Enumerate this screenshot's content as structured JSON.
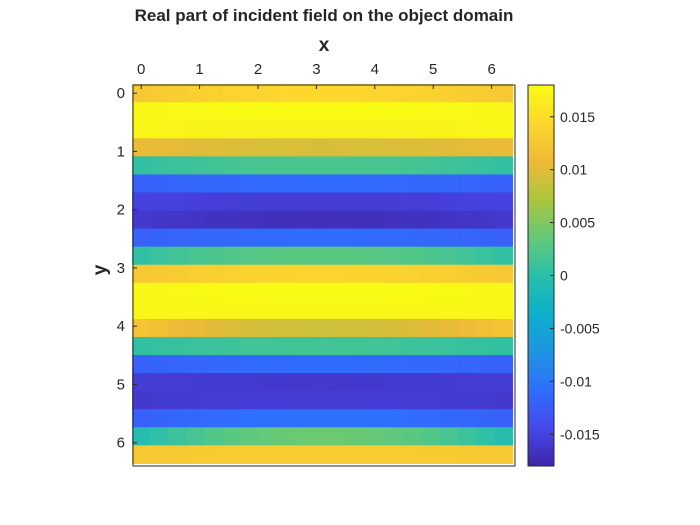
{
  "chart_data": {
    "type": "heatmap",
    "title": "Real part of incident field on the object domain",
    "xlabel": "x",
    "ylabel": "y",
    "x_axis_location": "top",
    "y_axis_direction": "reverse",
    "xlim": [
      -0.14,
      6.4
    ],
    "ylim": [
      -0.14,
      6.4
    ],
    "xticks": [
      0,
      1,
      2,
      3,
      4,
      5,
      6
    ],
    "yticks": [
      0,
      1,
      2,
      3,
      4,
      5,
      6
    ],
    "x_centers": [
      0,
      0.31,
      0.62,
      0.93,
      1.24,
      1.55,
      1.86,
      2.17,
      2.48,
      2.79,
      3.1,
      3.41,
      3.72,
      4.03,
      4.34,
      4.65,
      4.96,
      5.27,
      5.58,
      5.89,
      6.2
    ],
    "y_centers": [
      0,
      0.31,
      0.62,
      0.93,
      1.24,
      1.55,
      1.86,
      2.17,
      2.48,
      2.79,
      3.1,
      3.41,
      3.72,
      4.03,
      4.34,
      4.65,
      4.96,
      5.27,
      5.58,
      5.89,
      6.2
    ],
    "row_profile_left": [
      0.0125,
      0.0175,
      0.0175,
      0.0105,
      0.0005,
      -0.012,
      -0.015,
      -0.016,
      -0.012,
      0.0005,
      0.0125,
      0.0175,
      0.0175,
      0.012,
      0.0005,
      -0.012,
      -0.0155,
      -0.016,
      -0.012,
      -0.0005,
      0.0125
    ],
    "row_profile_center": [
      0.0145,
      0.018,
      0.017,
      0.0095,
      0.002,
      -0.011,
      -0.0155,
      -0.017,
      -0.011,
      0.003,
      0.014,
      0.018,
      0.0175,
      0.009,
      0.0015,
      -0.011,
      -0.016,
      -0.0155,
      -0.0105,
      0.004,
      0.013
    ],
    "colormap": "parula",
    "clim": [
      -0.018,
      0.018
    ],
    "colorbar_ticks": [
      0.015,
      0.01,
      0.005,
      0,
      -0.005,
      -0.01,
      -0.015
    ],
    "colorbar_tick_labels": [
      "0.015",
      "0.01",
      "0.005",
      "0",
      "-0.005",
      "-0.01",
      "-0.015"
    ],
    "grid": false
  }
}
